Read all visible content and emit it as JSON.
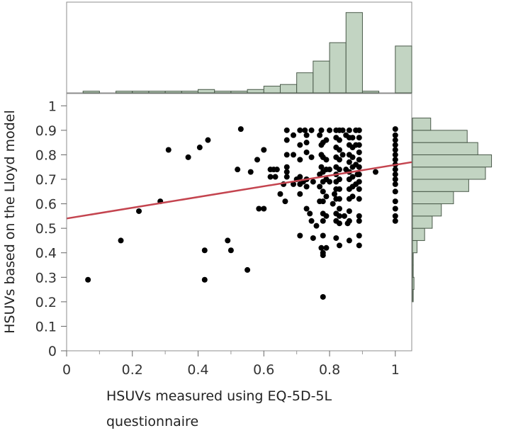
{
  "chart_data": {
    "type": "scatter",
    "title": "",
    "xlabel_lines": [
      "HSUVs measured using EQ-5D-5L",
      "questionnaire"
    ],
    "ylabel": "HSUVs based on the Lloyd model",
    "xlim": [
      0,
      1.05
    ],
    "ylim": [
      0,
      1.05
    ],
    "x_ticks": [
      "0",
      "0.2",
      "0.4",
      "0.6",
      "0.8",
      "1"
    ],
    "y_ticks": [
      "0",
      "0.1",
      "0.2",
      "0.3",
      "0.4",
      "0.5",
      "0.6",
      "0.7",
      "0.8",
      "0.9",
      "1"
    ],
    "grid": false,
    "legend": "none",
    "fit_line": {
      "x": [
        0,
        1.05
      ],
      "y": [
        0.54,
        0.77
      ]
    },
    "points": [
      [
        0.065,
        0.29
      ],
      [
        0.165,
        0.45
      ],
      [
        0.22,
        0.57
      ],
      [
        0.285,
        0.61
      ],
      [
        0.31,
        0.82
      ],
      [
        0.37,
        0.79
      ],
      [
        0.405,
        0.83
      ],
      [
        0.43,
        0.86
      ],
      [
        0.42,
        0.41
      ],
      [
        0.42,
        0.29
      ],
      [
        0.49,
        0.45
      ],
      [
        0.5,
        0.41
      ],
      [
        0.53,
        0.905
      ],
      [
        0.55,
        0.33
      ],
      [
        0.52,
        0.74
      ],
      [
        0.56,
        0.73
      ],
      [
        0.58,
        0.78
      ],
      [
        0.585,
        0.58
      ],
      [
        0.6,
        0.82
      ],
      [
        0.6,
        0.58
      ],
      [
        0.62,
        0.74
      ],
      [
        0.62,
        0.71
      ],
      [
        0.63,
        0.74
      ],
      [
        0.635,
        0.71
      ],
      [
        0.64,
        0.74
      ],
      [
        0.65,
        0.64
      ],
      [
        0.66,
        0.68
      ],
      [
        0.665,
        0.61
      ],
      [
        0.67,
        0.71
      ],
      [
        0.67,
        0.75
      ],
      [
        0.67,
        0.8
      ],
      [
        0.67,
        0.86
      ],
      [
        0.67,
        0.9
      ],
      [
        0.67,
        0.73
      ],
      [
        0.69,
        0.68
      ],
      [
        0.69,
        0.8
      ],
      [
        0.69,
        0.88
      ],
      [
        0.7,
        0.7
      ],
      [
        0.71,
        0.9
      ],
      [
        0.71,
        0.84
      ],
      [
        0.71,
        0.78
      ],
      [
        0.71,
        0.71
      ],
      [
        0.71,
        0.68
      ],
      [
        0.71,
        0.64
      ],
      [
        0.71,
        0.47
      ],
      [
        0.72,
        0.69
      ],
      [
        0.725,
        0.9
      ],
      [
        0.73,
        0.88
      ],
      [
        0.73,
        0.85
      ],
      [
        0.73,
        0.81
      ],
      [
        0.73,
        0.7
      ],
      [
        0.73,
        0.67
      ],
      [
        0.73,
        0.58
      ],
      [
        0.74,
        0.56
      ],
      [
        0.745,
        0.9
      ],
      [
        0.745,
        0.79
      ],
      [
        0.745,
        0.53
      ],
      [
        0.75,
        0.46
      ],
      [
        0.75,
        0.69
      ],
      [
        0.76,
        0.51
      ],
      [
        0.77,
        0.67
      ],
      [
        0.77,
        0.61
      ],
      [
        0.77,
        0.72
      ],
      [
        0.77,
        0.88
      ],
      [
        0.775,
        0.9
      ],
      [
        0.775,
        0.84
      ],
      [
        0.775,
        0.8
      ],
      [
        0.775,
        0.75
      ],
      [
        0.775,
        0.42
      ],
      [
        0.78,
        0.85
      ],
      [
        0.78,
        0.79
      ],
      [
        0.78,
        0.73
      ],
      [
        0.78,
        0.69
      ],
      [
        0.78,
        0.65
      ],
      [
        0.78,
        0.61
      ],
      [
        0.78,
        0.56
      ],
      [
        0.78,
        0.53
      ],
      [
        0.78,
        0.47
      ],
      [
        0.78,
        0.4
      ],
      [
        0.78,
        0.39
      ],
      [
        0.78,
        0.22
      ],
      [
        0.79,
        0.86
      ],
      [
        0.79,
        0.78
      ],
      [
        0.79,
        0.74
      ],
      [
        0.79,
        0.7
      ],
      [
        0.79,
        0.63
      ],
      [
        0.79,
        0.55
      ],
      [
        0.79,
        0.42
      ],
      [
        0.8,
        0.9
      ],
      [
        0.8,
        0.74
      ],
      [
        0.8,
        0.69
      ],
      [
        0.81,
        0.6
      ],
      [
        0.815,
        0.64
      ],
      [
        0.82,
        0.9
      ],
      [
        0.82,
        0.87
      ],
      [
        0.82,
        0.83
      ],
      [
        0.82,
        0.79
      ],
      [
        0.82,
        0.75
      ],
      [
        0.82,
        0.72
      ],
      [
        0.82,
        0.69
      ],
      [
        0.82,
        0.66
      ],
      [
        0.82,
        0.62
      ],
      [
        0.82,
        0.56
      ],
      [
        0.82,
        0.53
      ],
      [
        0.82,
        0.46
      ],
      [
        0.83,
        0.9
      ],
      [
        0.83,
        0.86
      ],
      [
        0.83,
        0.82
      ],
      [
        0.83,
        0.78
      ],
      [
        0.83,
        0.74
      ],
      [
        0.83,
        0.7
      ],
      [
        0.83,
        0.66
      ],
      [
        0.83,
        0.62
      ],
      [
        0.83,
        0.58
      ],
      [
        0.83,
        0.55
      ],
      [
        0.83,
        0.52
      ],
      [
        0.83,
        0.43
      ],
      [
        0.84,
        0.9
      ],
      [
        0.84,
        0.8
      ],
      [
        0.845,
        0.55
      ],
      [
        0.85,
        0.88
      ],
      [
        0.85,
        0.74
      ],
      [
        0.855,
        0.52
      ],
      [
        0.86,
        0.9
      ],
      [
        0.86,
        0.87
      ],
      [
        0.86,
        0.84
      ],
      [
        0.86,
        0.8
      ],
      [
        0.86,
        0.77
      ],
      [
        0.86,
        0.73
      ],
      [
        0.86,
        0.7
      ],
      [
        0.86,
        0.66
      ],
      [
        0.86,
        0.62
      ],
      [
        0.86,
        0.57
      ],
      [
        0.86,
        0.53
      ],
      [
        0.86,
        0.45
      ],
      [
        0.87,
        0.87
      ],
      [
        0.87,
        0.83
      ],
      [
        0.87,
        0.79
      ],
      [
        0.87,
        0.75
      ],
      [
        0.87,
        0.71
      ],
      [
        0.87,
        0.67
      ],
      [
        0.87,
        0.63
      ],
      [
        0.88,
        0.9
      ],
      [
        0.88,
        0.84
      ],
      [
        0.88,
        0.76
      ],
      [
        0.88,
        0.68
      ],
      [
        0.885,
        0.72
      ],
      [
        0.89,
        0.9
      ],
      [
        0.89,
        0.87
      ],
      [
        0.89,
        0.84
      ],
      [
        0.89,
        0.81
      ],
      [
        0.89,
        0.78
      ],
      [
        0.89,
        0.75
      ],
      [
        0.89,
        0.72
      ],
      [
        0.89,
        0.69
      ],
      [
        0.89,
        0.66
      ],
      [
        0.89,
        0.62
      ],
      [
        0.89,
        0.55
      ],
      [
        0.89,
        0.53
      ],
      [
        0.89,
        0.47
      ],
      [
        0.89,
        0.43
      ],
      [
        0.94,
        0.73
      ],
      [
        1.0,
        0.905
      ],
      [
        1.0,
        0.88
      ],
      [
        1.0,
        0.86
      ],
      [
        1.0,
        0.84
      ],
      [
        1.0,
        0.82
      ],
      [
        1.0,
        0.8
      ],
      [
        1.0,
        0.78
      ],
      [
        1.0,
        0.76
      ],
      [
        1.0,
        0.74
      ],
      [
        1.0,
        0.72
      ],
      [
        1.0,
        0.7
      ],
      [
        1.0,
        0.68
      ],
      [
        1.0,
        0.65
      ],
      [
        1.0,
        0.61
      ],
      [
        1.0,
        0.58
      ],
      [
        1.0,
        0.55
      ],
      [
        1.0,
        0.53
      ]
    ],
    "x_histogram": {
      "bin_width": 0.05,
      "bins": [
        [
          0.05,
          1
        ],
        [
          0.15,
          1
        ],
        [
          0.2,
          1
        ],
        [
          0.25,
          1
        ],
        [
          0.3,
          1
        ],
        [
          0.35,
          1
        ],
        [
          0.4,
          2
        ],
        [
          0.45,
          1
        ],
        [
          0.5,
          1
        ],
        [
          0.55,
          2
        ],
        [
          0.6,
          4
        ],
        [
          0.65,
          5
        ],
        [
          0.7,
          12
        ],
        [
          0.75,
          19
        ],
        [
          0.8,
          30
        ],
        [
          0.85,
          48
        ],
        [
          0.9,
          1
        ],
        [
          1.0,
          28
        ]
      ],
      "max_count": 50
    },
    "y_histogram": {
      "bin_width": 0.05,
      "bins": [
        [
          0.2,
          0.5
        ],
        [
          0.25,
          1
        ],
        [
          0.3,
          0.5
        ],
        [
          0.35,
          0.5
        ],
        [
          0.4,
          3
        ],
        [
          0.45,
          8
        ],
        [
          0.5,
          13
        ],
        [
          0.55,
          19
        ],
        [
          0.6,
          27
        ],
        [
          0.65,
          37
        ],
        [
          0.7,
          48
        ],
        [
          0.75,
          52
        ],
        [
          0.8,
          43
        ],
        [
          0.85,
          36
        ],
        [
          0.9,
          12
        ]
      ],
      "max_count": 55
    }
  },
  "colors": {
    "points": "#000000",
    "fit_line": "#c4444f",
    "hist_fill": "#c2d4c2",
    "hist_stroke": "#4a5a4a",
    "frame": "#8c8c8c"
  }
}
